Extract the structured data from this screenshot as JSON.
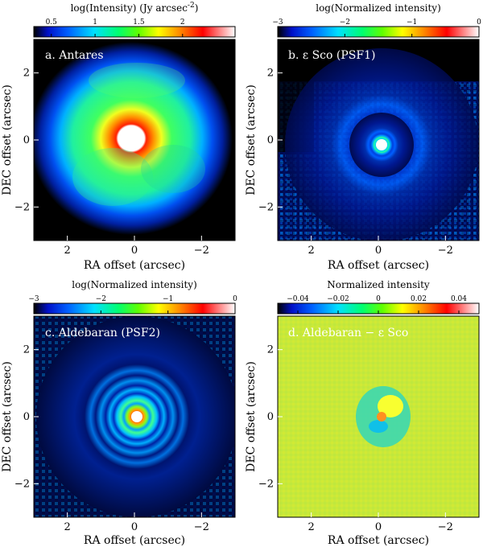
{
  "chart_data": [
    {
      "type": "heatmap",
      "panel_label": "a.",
      "object": "Antares",
      "colorbar_label": "log(Intensity) (Jy arcsec",
      "colorbar_label_exponent": "-2",
      "colorbar_label_suffix": ")",
      "colorbar_range": [
        0.3,
        2.6
      ],
      "colorbar_ticks": [
        "0.5",
        "1",
        "1.5",
        "2"
      ],
      "colorbar_tick_values": [
        0.5,
        1.0,
        1.5,
        2.0
      ],
      "colormap": "jet-like (black-blue-cyan-green-yellow-red-white)",
      "xlabel": "RA offset (arcsec)",
      "ylabel": "DEC offset (arcsec)",
      "xlim": [
        3,
        -3
      ],
      "ylim": [
        -3,
        3
      ],
      "xticks": [
        "2",
        "0",
        "−2"
      ],
      "yticks": [
        "2",
        "0",
        "−2"
      ],
      "features": "saturated white core (r≈0.35\"), red ring, green halo out to ~2\", outer blue shell to ~2.8\""
    },
    {
      "type": "heatmap",
      "panel_label": "b.",
      "object": "ε Sco (PSF1)",
      "colorbar_label": "log(Normalized intensity)",
      "colorbar_range": [
        -3,
        0
      ],
      "colorbar_ticks": [
        "−3",
        "−2",
        "−1",
        "0"
      ],
      "colorbar_tick_values": [
        -3,
        -2,
        -1,
        0
      ],
      "colormap": "jet-like",
      "xlabel": "RA offset (arcsec)",
      "ylabel": "DEC offset (arcsec)",
      "xlim": [
        3,
        -3
      ],
      "ylim": [
        -3,
        3
      ],
      "xticks": [
        "2",
        "0",
        "−2"
      ],
      "yticks": [
        "2",
        "0",
        "−2"
      ],
      "features": "point source PSF with Airy rings, noisy background"
    },
    {
      "type": "heatmap",
      "panel_label": "c.",
      "object": "Aldebaran (PSF2)",
      "colorbar_label": "log(Normalized intensity)",
      "colorbar_range": [
        -3,
        0
      ],
      "colorbar_ticks": [
        "−3",
        "−2",
        "−1",
        "0"
      ],
      "colorbar_tick_values": [
        -3,
        -2,
        -1,
        0
      ],
      "colormap": "jet-like",
      "xlabel": "RA offset (arcsec)",
      "ylabel": "DEC offset (arcsec)",
      "xlim": [
        3,
        -3
      ],
      "ylim": [
        -3,
        3
      ],
      "xticks": [
        "2",
        "0",
        "−2"
      ],
      "yticks": [
        "2",
        "0",
        "−2"
      ],
      "features": "point source PSF with clear Airy rings to ~2\""
    },
    {
      "type": "heatmap",
      "panel_label": "d.",
      "object": "Aldebaran − ε Sco",
      "colorbar_label": "Normalized intensity",
      "colorbar_range": [
        -0.05,
        0.05
      ],
      "colorbar_ticks": [
        "−0.04",
        "−0.02",
        "0",
        "0.02",
        "0.04"
      ],
      "colorbar_tick_values": [
        -0.04,
        -0.02,
        0,
        0.02,
        0.04
      ],
      "colormap": "jet-like",
      "xlabel": "RA offset (arcsec)",
      "ylabel": "DEC offset (arcsec)",
      "xlim": [
        3,
        -3
      ],
      "ylim": [
        -3,
        3
      ],
      "xticks": [
        "2",
        "0",
        "−2"
      ],
      "yticks": [
        "2",
        "0",
        "−2"
      ],
      "features": "difference image near zero, small residual structure within ~0.6\" of center"
    }
  ]
}
